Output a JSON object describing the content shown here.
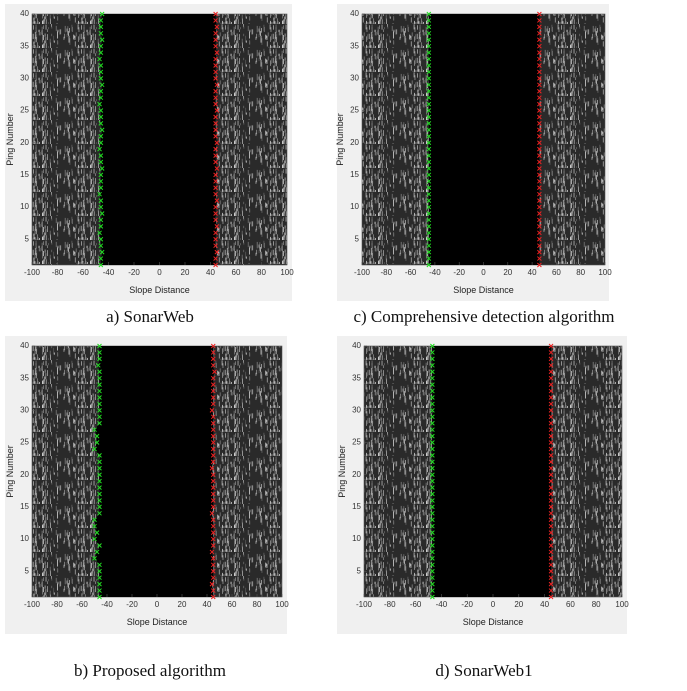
{
  "chart_data": [
    {
      "type": "scatter",
      "title": "a) SonarWeb",
      "x_label": "Slope Distance",
      "y_label": "Ping Number",
      "xlim": [
        -100,
        100
      ],
      "xticks": [
        -100,
        -80,
        -60,
        -40,
        -20,
        0,
        20,
        40,
        60,
        80,
        100
      ],
      "ylim": [
        1,
        40
      ],
      "yticks": [
        5,
        10,
        15,
        20,
        25,
        30,
        35,
        40
      ],
      "y": [
        1,
        2,
        3,
        4,
        5,
        6,
        7,
        8,
        9,
        10,
        11,
        12,
        13,
        14,
        15,
        16,
        17,
        18,
        19,
        20,
        21,
        22,
        23,
        24,
        25,
        26,
        27,
        28,
        29,
        30,
        31,
        32,
        33,
        34,
        35,
        36,
        37,
        38,
        39,
        40
      ],
      "series": [
        {
          "color": "#22dd22",
          "values": [
            -46,
            -46,
            -45,
            -46,
            -46,
            -47,
            -46,
            -46,
            -45,
            -46,
            -46,
            -47,
            -46,
            -46,
            -46,
            -45,
            -46,
            -46,
            -47,
            -46,
            -46,
            -45,
            -46,
            -46,
            -46,
            -47,
            -46,
            -46,
            -45,
            -46,
            -46,
            -46,
            -47,
            -46,
            -46,
            -45,
            -46,
            -46,
            -46,
            -45
          ]
        },
        {
          "color": "#ee2222",
          "values": [
            44,
            44,
            45,
            44,
            44,
            44,
            45,
            44,
            44,
            44,
            45,
            44,
            44,
            44,
            44,
            45,
            44,
            44,
            44,
            45,
            44,
            44,
            44,
            44,
            45,
            44,
            44,
            44,
            45,
            44,
            44,
            44,
            44,
            45,
            44,
            44,
            44,
            45,
            44,
            44
          ]
        }
      ]
    },
    {
      "type": "scatter",
      "title": "c) Comprehensive detection algorithm",
      "x_label": "Slope Distance",
      "y_label": "Ping Number",
      "xlim": [
        -100,
        100
      ],
      "xticks": [
        -100,
        -80,
        -60,
        -40,
        -20,
        0,
        20,
        40,
        60,
        80,
        100
      ],
      "ylim": [
        1,
        40
      ],
      "yticks": [
        5,
        10,
        15,
        20,
        25,
        30,
        35,
        40
      ],
      "y": [
        1,
        2,
        3,
        4,
        5,
        6,
        7,
        8,
        9,
        10,
        11,
        12,
        13,
        14,
        15,
        16,
        17,
        18,
        19,
        20,
        21,
        22,
        23,
        24,
        25,
        26,
        27,
        28,
        29,
        30,
        31,
        32,
        33,
        34,
        35,
        36,
        37,
        38,
        39,
        40
      ],
      "series": [
        {
          "color": "#22dd22",
          "values": [
            -45,
            -45,
            -45,
            -45,
            -45,
            -45,
            -45,
            -45,
            -45,
            -45,
            -45,
            -45,
            -45,
            -45,
            -45,
            -45,
            -45,
            -45,
            -45,
            -45,
            -45,
            -45,
            -45,
            -45,
            -45,
            -45,
            -45,
            -45,
            -45,
            -45,
            -45,
            -45,
            -45,
            -45,
            -45,
            -45,
            -45,
            -45,
            -45,
            -45
          ]
        },
        {
          "color": "#ee2222",
          "values": [
            46,
            46,
            46,
            46,
            46,
            46,
            46,
            46,
            46,
            46,
            46,
            46,
            46,
            46,
            46,
            46,
            46,
            46,
            46,
            46,
            46,
            46,
            46,
            46,
            46,
            46,
            46,
            46,
            46,
            46,
            46,
            46,
            46,
            46,
            46,
            46,
            46,
            46,
            46,
            46
          ]
        }
      ]
    },
    {
      "type": "scatter",
      "title": "b) Proposed algorithm",
      "x_label": "Slope Distance",
      "y_label": "Ping Number",
      "xlim": [
        -100,
        100
      ],
      "xticks": [
        -100,
        -80,
        -60,
        -40,
        -20,
        0,
        20,
        40,
        60,
        80,
        100
      ],
      "ylim": [
        1,
        40
      ],
      "yticks": [
        5,
        10,
        15,
        20,
        25,
        30,
        35,
        40
      ],
      "y": [
        1,
        2,
        3,
        4,
        5,
        6,
        7,
        8,
        9,
        10,
        11,
        12,
        13,
        14,
        15,
        16,
        17,
        18,
        19,
        20,
        21,
        22,
        23,
        24,
        25,
        26,
        27,
        28,
        29,
        30,
        31,
        32,
        33,
        34,
        35,
        36,
        37,
        38,
        39,
        40
      ],
      "series": [
        {
          "color": "#22dd22",
          "values": [
            -46,
            -46,
            -46,
            -46,
            -46,
            -46,
            -50,
            -48,
            -46,
            -50,
            -48,
            -50,
            -50,
            -46,
            -46,
            -46,
            -46,
            -46,
            -46,
            -46,
            -46,
            -46,
            -46,
            -50,
            -48,
            -48,
            -50,
            -46,
            -46,
            -46,
            -46,
            -46,
            -46,
            -46,
            -46,
            -46,
            -47,
            -46,
            -46,
            -46
          ]
        },
        {
          "color": "#ee2222",
          "values": [
            45,
            45,
            44,
            45,
            45,
            45,
            45,
            44,
            45,
            45,
            45,
            45,
            45,
            44,
            45,
            45,
            45,
            45,
            45,
            45,
            44,
            45,
            45,
            45,
            45,
            45,
            45,
            45,
            45,
            44,
            45,
            45,
            45,
            45,
            45,
            46,
            45,
            45,
            45,
            45
          ]
        }
      ]
    },
    {
      "type": "scatter",
      "title": "d) SonarWeb1",
      "x_label": "Slope Distance",
      "y_label": "Ping Number",
      "xlim": [
        -100,
        100
      ],
      "xticks": [
        -100,
        -80,
        -60,
        -40,
        -20,
        0,
        20,
        40,
        60,
        80,
        100
      ],
      "ylim": [
        1,
        40
      ],
      "yticks": [
        5,
        10,
        15,
        20,
        25,
        30,
        35,
        40
      ],
      "y": [
        1,
        2,
        3,
        4,
        5,
        6,
        7,
        8,
        9,
        10,
        11,
        12,
        13,
        14,
        15,
        16,
        17,
        18,
        19,
        20,
        21,
        22,
        23,
        24,
        25,
        26,
        27,
        28,
        29,
        30,
        31,
        32,
        33,
        34,
        35,
        36,
        37,
        38,
        39,
        40
      ],
      "series": [
        {
          "color": "#22dd22",
          "values": [
            -47,
            -47,
            -47,
            -47,
            -47,
            -47,
            -47,
            -47,
            -47,
            -47,
            -47,
            -47,
            -47,
            -47,
            -47,
            -47,
            -47,
            -47,
            -47,
            -47,
            -47,
            -47,
            -47,
            -47,
            -47,
            -47,
            -47,
            -47,
            -47,
            -47,
            -47,
            -47,
            -47,
            -47,
            -47,
            -47,
            -47,
            -47,
            -47,
            -47
          ]
        },
        {
          "color": "#ee2222",
          "values": [
            45,
            45,
            45,
            45,
            45,
            45,
            45,
            45,
            45,
            45,
            45,
            45,
            45,
            45,
            45,
            45,
            45,
            45,
            45,
            45,
            45,
            45,
            45,
            45,
            45,
            45,
            45,
            45,
            45,
            45,
            45,
            45,
            45,
            45,
            45,
            45,
            45,
            45,
            45,
            45
          ]
        }
      ]
    }
  ]
}
